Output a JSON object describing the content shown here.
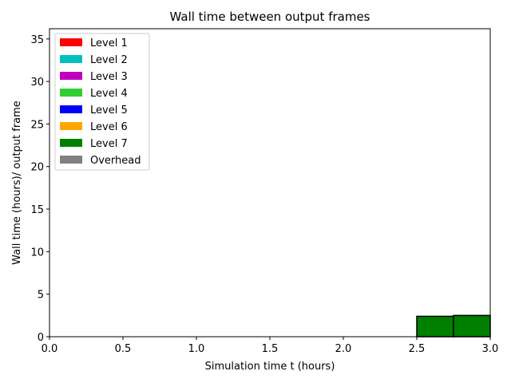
{
  "chart_data": {
    "type": "histogram",
    "title": "Wall time between output frames",
    "x_label": "Simulation time t (hours)",
    "y_label": "Wall time (hours)/ output frame",
    "bins": [
      0,
      0.25,
      0.5,
      0.75,
      1,
      1.25,
      1.5,
      1.75,
      2,
      2.25,
      2.5,
      2.75,
      3
    ],
    "series": [
      {
        "name": "Level 1",
        "color": "#ff0000",
        "values": [
          0,
          0,
          0,
          0,
          0,
          0,
          0,
          0,
          0,
          0,
          0,
          0
        ]
      },
      {
        "name": "Level 2",
        "color": "#00bfbf",
        "values": [
          0,
          0,
          0,
          0,
          0,
          0,
          0,
          0,
          0,
          0,
          0,
          0
        ]
      },
      {
        "name": "Level 3",
        "color": "#bf00bf",
        "values": [
          0,
          0,
          0,
          0,
          0,
          0,
          0,
          0,
          0,
          0,
          0,
          0
        ]
      },
      {
        "name": "Level 4",
        "color": "#32cd32",
        "values": [
          0,
          0,
          0,
          0,
          0,
          0,
          0,
          0,
          0,
          0,
          0,
          0
        ]
      },
      {
        "name": "Level 5",
        "color": "#0000ff",
        "values": [
          0,
          0,
          0,
          0,
          0,
          0,
          0,
          0,
          0,
          0,
          0,
          0
        ]
      },
      {
        "name": "Level 6",
        "color": "#ffa500",
        "values": [
          0,
          0,
          0,
          0,
          0,
          0,
          0,
          0,
          0,
          0,
          0,
          0
        ]
      },
      {
        "name": "Level 7",
        "color": "#008000",
        "values": [
          0,
          0,
          0,
          0,
          0,
          0,
          0,
          0,
          0,
          0,
          2.4,
          2.5
        ]
      },
      {
        "name": "Overhead",
        "color": "#808080",
        "values": [
          0,
          0,
          0,
          0,
          0,
          0,
          0,
          0,
          0,
          0,
          0,
          0
        ]
      }
    ],
    "xlim": [
      0,
      3
    ],
    "xticks": [
      {
        "value": 0,
        "label": "0.0"
      },
      0.5,
      {
        "value": 1,
        "label": "1.0"
      },
      1.5,
      {
        "value": 2,
        "label": "2.0"
      },
      2.5,
      {
        "value": 3,
        "label": "3.0"
      }
    ],
    "ylim": [
      0,
      36.2
    ],
    "yticks": [
      0,
      5,
      10,
      15,
      20,
      25,
      30,
      35
    ],
    "legend": "upper-left"
  }
}
